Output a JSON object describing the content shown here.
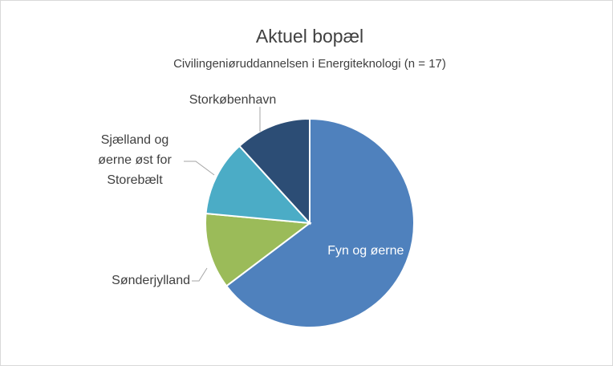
{
  "chart_data": {
    "type": "pie",
    "title": "Aktuel bopæl",
    "subtitle": "Civilingeniøruddannelsen i Energiteknologi (n = 17)",
    "categories": [
      "Fyn og øerne",
      "Sønderjylland",
      "Sjælland og øerne øst for Storebælt",
      "Storkøbenhavn"
    ],
    "values": [
      11,
      2,
      2,
      2
    ],
    "colors": [
      "#4f81bd",
      "#9bbb59",
      "#4bacc6",
      "#2c4d75"
    ]
  }
}
